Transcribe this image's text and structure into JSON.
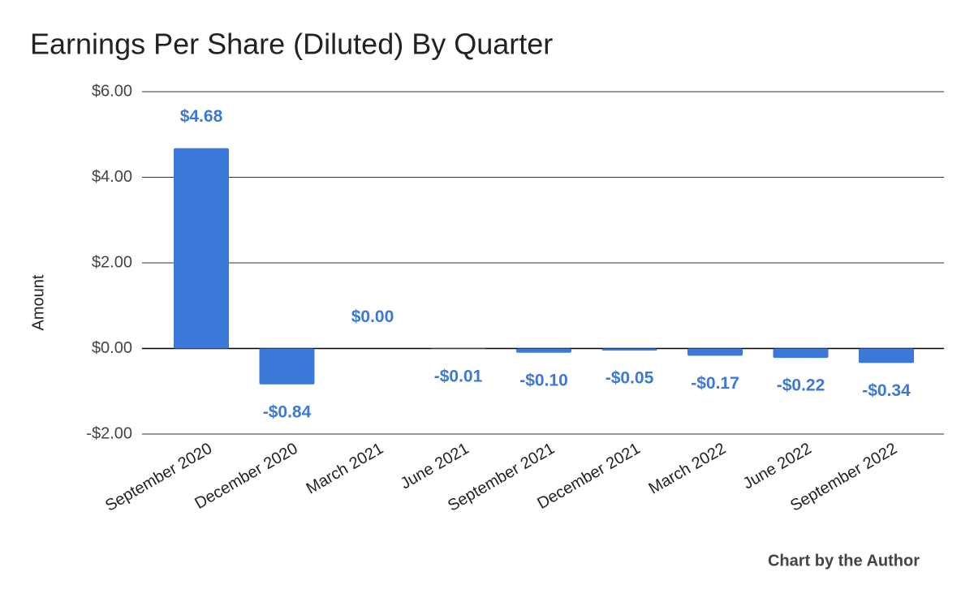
{
  "chart_data": {
    "type": "bar",
    "title": "Earnings Per Share (Diluted) By Quarter",
    "y_label": "Amount",
    "note": "Chart by the Author",
    "categories": [
      "September 2020",
      "December 2020",
      "March 2021",
      "June 2021",
      "September 2021",
      "December 2021",
      "March 2022",
      "June 2022",
      "September 2022"
    ],
    "values": [
      4.68,
      -0.84,
      0,
      -0.01,
      -0.1,
      -0.05,
      -0.17,
      -0.22,
      -0.34
    ],
    "value_labels": [
      "$4.68",
      "-$0.84",
      "$0.00",
      "-$0.01",
      "-$0.10",
      "-$0.05",
      "-$0.17",
      "-$0.22",
      "-$0.34"
    ],
    "color": "#3c78d8",
    "ylim": [
      -2,
      6
    ],
    "yticks": [
      {
        "value": -2,
        "label": "-$2.00"
      },
      {
        "value": 0,
        "label": "$0.00"
      },
      {
        "value": 2,
        "label": "$2.00"
      },
      {
        "value": 4,
        "label": "$4.00"
      },
      {
        "value": 6,
        "label": "$6.00"
      }
    ],
    "grid": true
  }
}
